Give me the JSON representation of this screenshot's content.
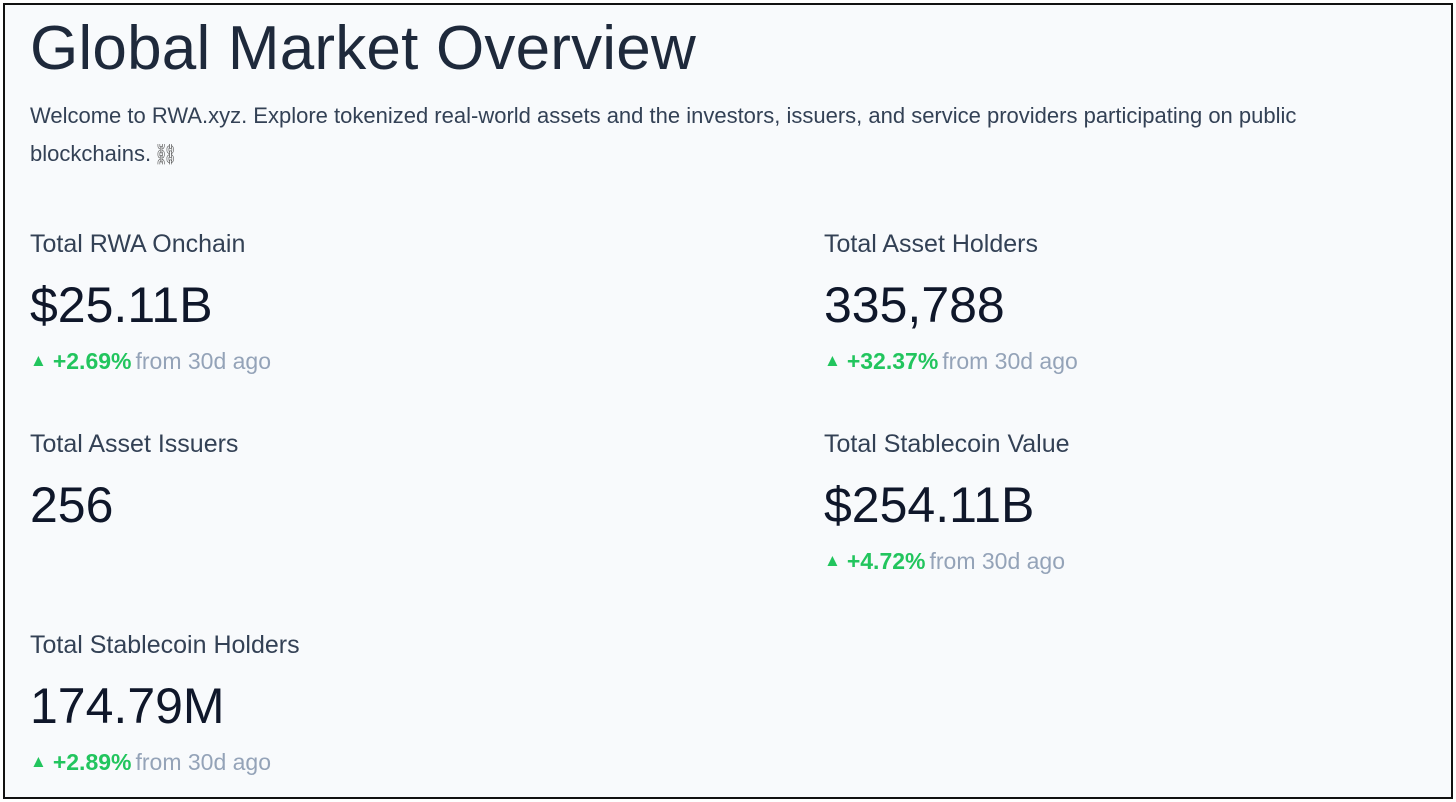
{
  "header": {
    "title": "Global Market Overview",
    "description": "Welcome to RWA.xyz. Explore tokenized real-world assets and the investors, issuers, and service providers participating on public blockchains.",
    "emoji": "⛓"
  },
  "stats": {
    "rwa_onchain": {
      "label": "Total RWA Onchain",
      "value": "$25.11B",
      "change": "+2.69%",
      "since": "from 30d ago"
    },
    "asset_holders": {
      "label": "Total Asset Holders",
      "value": "335,788",
      "change": "+32.37%",
      "since": "from 30d ago"
    },
    "asset_issuers": {
      "label": "Total Asset Issuers",
      "value": "256"
    },
    "stablecoin_value": {
      "label": "Total Stablecoin Value",
      "value": "$254.11B",
      "change": "+4.72%",
      "since": "from 30d ago"
    },
    "stablecoin_holders": {
      "label": "Total Stablecoin Holders",
      "value": "174.79M",
      "change": "+2.89%",
      "since": "from 30d ago"
    }
  },
  "icons": {
    "change_up": "triangle-up-icon"
  },
  "colors": {
    "positive": "#22c55e",
    "muted": "#94a3b8",
    "title": "#1e293b",
    "value": "#0f172a",
    "background": "#f8fafc"
  }
}
